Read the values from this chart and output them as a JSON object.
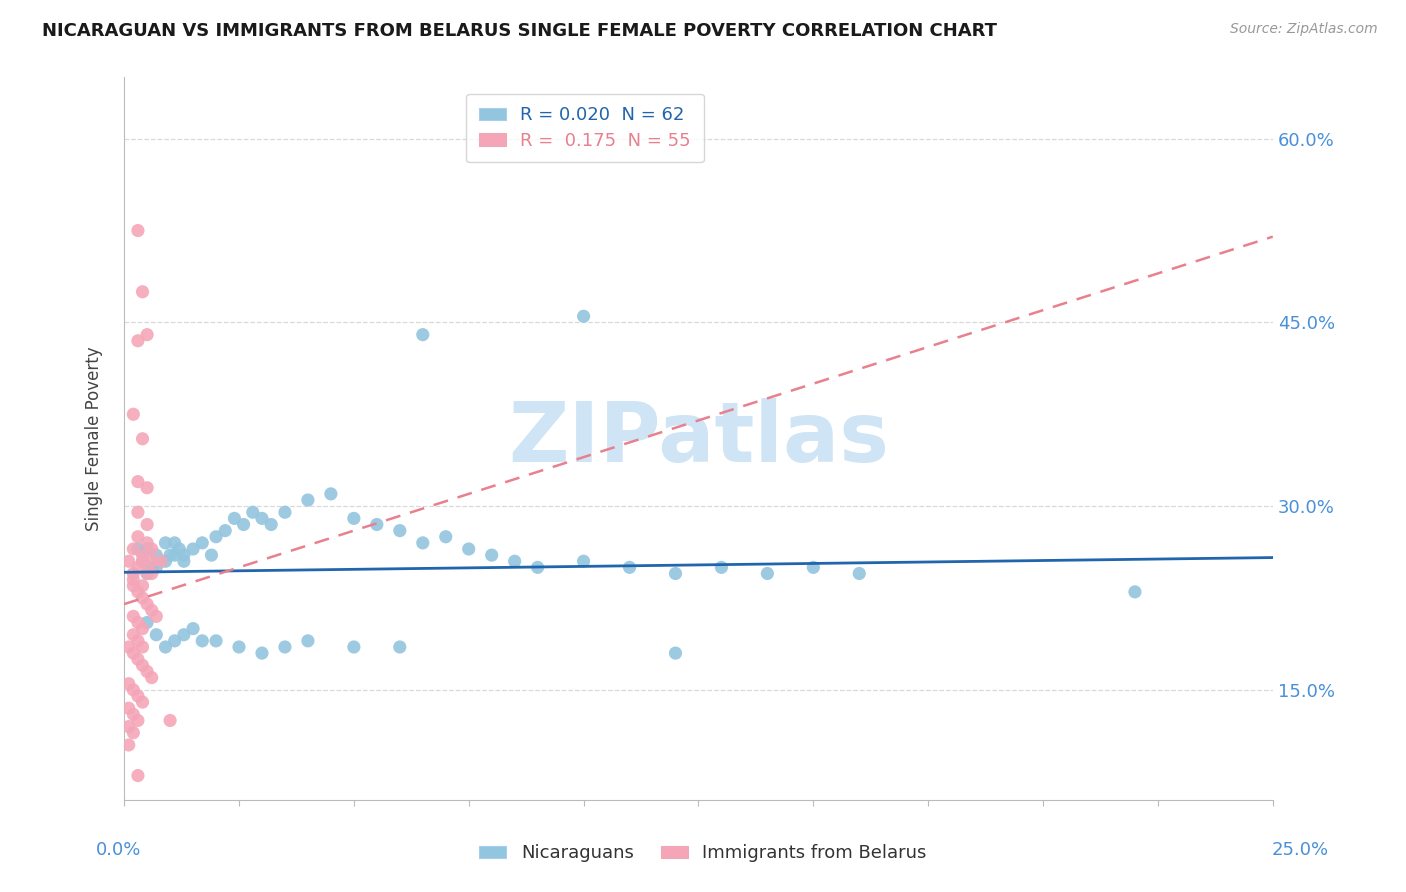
{
  "title": "NICARAGUAN VS IMMIGRANTS FROM BELARUS SINGLE FEMALE POVERTY CORRELATION CHART",
  "source": "Source: ZipAtlas.com",
  "ylabel": "Single Female Poverty",
  "xlim": [
    0.0,
    0.25
  ],
  "ylim": [
    0.06,
    0.65
  ],
  "yticks": [
    0.15,
    0.3,
    0.45,
    0.6
  ],
  "right_ytick_labels": [
    "15.0%",
    "30.0%",
    "45.0%",
    "60.0%"
  ],
  "blue_color": "#92c5de",
  "pink_color": "#f4a6b8",
  "blue_line_color": "#2166ac",
  "pink_line_color": "#e8808e",
  "blue_scatter": [
    [
      0.003,
      0.265
    ],
    [
      0.004,
      0.255
    ],
    [
      0.005,
      0.265
    ],
    [
      0.006,
      0.25
    ],
    [
      0.007,
      0.26
    ],
    [
      0.008,
      0.255
    ],
    [
      0.009,
      0.27
    ],
    [
      0.01,
      0.26
    ],
    [
      0.011,
      0.27
    ],
    [
      0.012,
      0.265
    ],
    [
      0.013,
      0.26
    ],
    [
      0.005,
      0.245
    ],
    [
      0.007,
      0.25
    ],
    [
      0.009,
      0.255
    ],
    [
      0.011,
      0.26
    ],
    [
      0.013,
      0.255
    ],
    [
      0.015,
      0.265
    ],
    [
      0.017,
      0.27
    ],
    [
      0.019,
      0.26
    ],
    [
      0.02,
      0.275
    ],
    [
      0.022,
      0.28
    ],
    [
      0.024,
      0.29
    ],
    [
      0.026,
      0.285
    ],
    [
      0.028,
      0.295
    ],
    [
      0.03,
      0.29
    ],
    [
      0.032,
      0.285
    ],
    [
      0.035,
      0.295
    ],
    [
      0.04,
      0.305
    ],
    [
      0.045,
      0.31
    ],
    [
      0.05,
      0.29
    ],
    [
      0.055,
      0.285
    ],
    [
      0.06,
      0.28
    ],
    [
      0.065,
      0.27
    ],
    [
      0.07,
      0.275
    ],
    [
      0.075,
      0.265
    ],
    [
      0.08,
      0.26
    ],
    [
      0.085,
      0.255
    ],
    [
      0.09,
      0.25
    ],
    [
      0.1,
      0.255
    ],
    [
      0.11,
      0.25
    ],
    [
      0.12,
      0.245
    ],
    [
      0.13,
      0.25
    ],
    [
      0.14,
      0.245
    ],
    [
      0.15,
      0.25
    ],
    [
      0.16,
      0.245
    ],
    [
      0.22,
      0.23
    ],
    [
      0.005,
      0.205
    ],
    [
      0.007,
      0.195
    ],
    [
      0.009,
      0.185
    ],
    [
      0.011,
      0.19
    ],
    [
      0.013,
      0.195
    ],
    [
      0.015,
      0.2
    ],
    [
      0.017,
      0.19
    ],
    [
      0.02,
      0.19
    ],
    [
      0.025,
      0.185
    ],
    [
      0.03,
      0.18
    ],
    [
      0.035,
      0.185
    ],
    [
      0.04,
      0.19
    ],
    [
      0.05,
      0.185
    ],
    [
      0.06,
      0.185
    ],
    [
      0.12,
      0.18
    ],
    [
      0.065,
      0.44
    ],
    [
      0.1,
      0.455
    ]
  ],
  "pink_scatter": [
    [
      0.003,
      0.525
    ],
    [
      0.004,
      0.475
    ],
    [
      0.003,
      0.435
    ],
    [
      0.005,
      0.44
    ],
    [
      0.002,
      0.375
    ],
    [
      0.004,
      0.355
    ],
    [
      0.003,
      0.32
    ],
    [
      0.005,
      0.315
    ],
    [
      0.003,
      0.295
    ],
    [
      0.005,
      0.285
    ],
    [
      0.003,
      0.275
    ],
    [
      0.005,
      0.27
    ],
    [
      0.002,
      0.265
    ],
    [
      0.004,
      0.26
    ],
    [
      0.006,
      0.255
    ],
    [
      0.001,
      0.255
    ],
    [
      0.003,
      0.25
    ],
    [
      0.005,
      0.245
    ],
    [
      0.002,
      0.24
    ],
    [
      0.004,
      0.235
    ],
    [
      0.006,
      0.245
    ],
    [
      0.002,
      0.235
    ],
    [
      0.003,
      0.23
    ],
    [
      0.004,
      0.225
    ],
    [
      0.005,
      0.22
    ],
    [
      0.006,
      0.215
    ],
    [
      0.007,
      0.21
    ],
    [
      0.002,
      0.21
    ],
    [
      0.003,
      0.205
    ],
    [
      0.004,
      0.2
    ],
    [
      0.002,
      0.195
    ],
    [
      0.003,
      0.19
    ],
    [
      0.004,
      0.185
    ],
    [
      0.001,
      0.185
    ],
    [
      0.002,
      0.18
    ],
    [
      0.003,
      0.175
    ],
    [
      0.004,
      0.17
    ],
    [
      0.005,
      0.165
    ],
    [
      0.006,
      0.16
    ],
    [
      0.001,
      0.155
    ],
    [
      0.002,
      0.15
    ],
    [
      0.003,
      0.145
    ],
    [
      0.004,
      0.14
    ],
    [
      0.001,
      0.135
    ],
    [
      0.002,
      0.13
    ],
    [
      0.003,
      0.125
    ],
    [
      0.001,
      0.12
    ],
    [
      0.002,
      0.115
    ],
    [
      0.001,
      0.105
    ],
    [
      0.003,
      0.08
    ],
    [
      0.002,
      0.245
    ],
    [
      0.004,
      0.255
    ],
    [
      0.006,
      0.265
    ],
    [
      0.008,
      0.255
    ],
    [
      0.01,
      0.125
    ]
  ],
  "background_color": "#ffffff",
  "grid_color": "#d0d0d0",
  "watermark": "ZIPatlas",
  "watermark_color": "#cfe4f4",
  "blue_trend_x": [
    0.0,
    0.25
  ],
  "blue_trend_y": [
    0.246,
    0.258
  ],
  "pink_trend_x": [
    0.0,
    0.25
  ],
  "pink_trend_y": [
    0.22,
    0.52
  ]
}
